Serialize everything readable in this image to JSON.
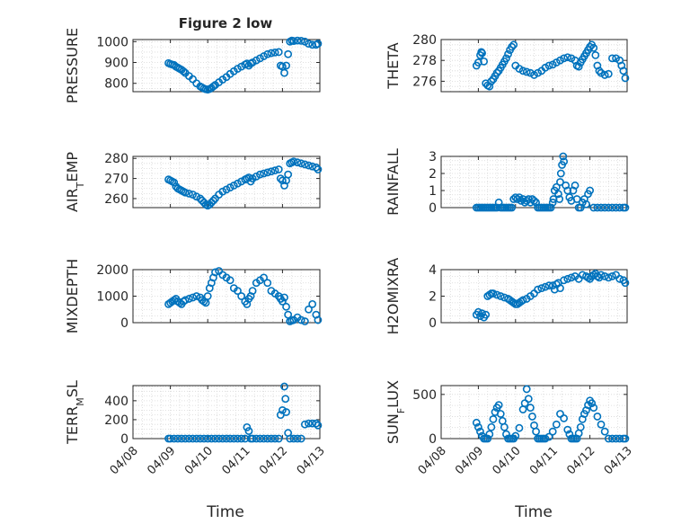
{
  "figure": {
    "title": "Figure 2 low",
    "xlabel": "Time",
    "x_ticks": [
      "04/08",
      "04/09",
      "04/10",
      "04/11",
      "04/12",
      "04/13"
    ],
    "x_ticks_value": [
      0,
      1,
      2,
      3,
      4,
      5
    ],
    "marker_color": "#0072BD",
    "grid_color": "#d8d8d8",
    "axis_color": "#262626"
  },
  "chart_data": [
    {
      "type": "scatter",
      "ylabel": "PRESSURE",
      "ylim": [
        760,
        1010
      ],
      "yticks": [
        800,
        900,
        1000
      ],
      "grid": true,
      "series": [
        {
          "x": [
            0.95,
            1.0,
            1.05,
            1.1,
            1.15,
            1.2,
            1.25,
            1.3,
            1.35,
            1.4,
            1.5,
            1.6,
            1.7,
            1.8,
            1.85,
            1.9,
            1.95,
            2.0,
            2.05,
            2.1,
            2.15,
            2.2,
            2.3,
            2.4,
            2.5,
            2.6,
            2.7,
            2.8,
            2.9,
            3.0,
            3.05,
            3.1,
            3.15,
            3.2,
            3.3,
            3.4,
            3.5,
            3.6,
            3.7,
            3.8,
            3.9,
            3.95,
            4.0,
            4.05,
            4.1,
            4.15,
            4.2,
            4.25,
            4.3,
            4.4,
            4.5,
            4.6,
            4.7,
            4.8,
            4.9,
            4.95
          ],
          "values": [
            897,
            893,
            890,
            888,
            880,
            875,
            870,
            865,
            858,
            850,
            835,
            820,
            800,
            785,
            780,
            775,
            772,
            770,
            773,
            778,
            785,
            792,
            805,
            818,
            830,
            845,
            858,
            870,
            880,
            890,
            895,
            885,
            895,
            900,
            910,
            920,
            930,
            940,
            945,
            948,
            950,
            885,
            880,
            850,
            885,
            940,
            1000,
            1005,
            1003,
            1005,
            1004,
            1000,
            990,
            985,
            985,
            990
          ]
        }
      ]
    },
    {
      "type": "scatter",
      "ylabel": "THETA",
      "ylim": [
        275.0,
        280.0
      ],
      "yticks": [
        276,
        278,
        280
      ],
      "grid": true,
      "series": [
        {
          "x": [
            0.95,
            1.0,
            1.05,
            1.08,
            1.1,
            1.15,
            1.2,
            1.25,
            1.3,
            1.35,
            1.4,
            1.45,
            1.5,
            1.55,
            1.6,
            1.65,
            1.7,
            1.75,
            1.8,
            1.85,
            1.9,
            1.95,
            2.0,
            2.1,
            2.2,
            2.3,
            2.4,
            2.5,
            2.6,
            2.7,
            2.8,
            2.9,
            3.0,
            3.1,
            3.2,
            3.3,
            3.4,
            3.5,
            3.6,
            3.65,
            3.7,
            3.75,
            3.8,
            3.85,
            3.9,
            3.95,
            4.0,
            4.05,
            4.1,
            4.15,
            4.2,
            4.25,
            4.3,
            4.4,
            4.5,
            4.6,
            4.7,
            4.8,
            4.85,
            4.9,
            4.95
          ],
          "values": [
            277.5,
            277.8,
            278.5,
            278.8,
            278.7,
            277.9,
            275.8,
            275.6,
            275.5,
            276.0,
            276.2,
            276.5,
            276.8,
            277.0,
            277.3,
            277.6,
            277.9,
            278.2,
            278.6,
            279.0,
            279.3,
            279.5,
            277.5,
            277.2,
            277.0,
            276.9,
            276.8,
            276.6,
            276.8,
            277.0,
            277.3,
            277.5,
            277.6,
            277.8,
            278.0,
            278.2,
            278.3,
            278.2,
            278.0,
            277.5,
            277.4,
            277.8,
            278.1,
            278.4,
            278.7,
            279.0,
            279.3,
            279.5,
            279.2,
            278.5,
            277.5,
            277.0,
            276.8,
            276.6,
            276.7,
            278.2,
            278.2,
            278.0,
            277.5,
            277.0,
            276.3
          ]
        }
      ]
    },
    {
      "type": "scatter",
      "ylabel": "AIR_TEMP",
      "ylim": [
        255.5,
        281.0
      ],
      "yticks": [
        260,
        270,
        280
      ],
      "grid": true,
      "series": [
        {
          "x": [
            0.95,
            1.0,
            1.05,
            1.1,
            1.15,
            1.2,
            1.25,
            1.3,
            1.35,
            1.4,
            1.5,
            1.6,
            1.7,
            1.8,
            1.85,
            1.9,
            1.95,
            2.0,
            2.05,
            2.1,
            2.15,
            2.2,
            2.3,
            2.4,
            2.5,
            2.6,
            2.7,
            2.8,
            2.9,
            3.0,
            3.05,
            3.1,
            3.15,
            3.2,
            3.3,
            3.4,
            3.5,
            3.6,
            3.7,
            3.8,
            3.9,
            3.95,
            4.0,
            4.05,
            4.1,
            4.15,
            4.2,
            4.25,
            4.3,
            4.4,
            4.5,
            4.6,
            4.7,
            4.8,
            4.9,
            4.95
          ],
          "values": [
            269.5,
            269.0,
            268.5,
            268.0,
            266.0,
            265.0,
            264.5,
            264.0,
            263.5,
            263.0,
            262.5,
            262.0,
            261.0,
            260.0,
            259.0,
            258.0,
            257.0,
            256.5,
            257.0,
            258.0,
            259.0,
            260.0,
            262.0,
            263.5,
            264.5,
            265.5,
            266.5,
            267.5,
            268.5,
            269.5,
            270.0,
            270.5,
            268.5,
            270.0,
            271.0,
            272.0,
            272.5,
            273.0,
            273.5,
            274.0,
            274.5,
            270.0,
            269.0,
            266.5,
            269.0,
            272.0,
            277.5,
            278.0,
            278.5,
            278.0,
            277.5,
            277.0,
            276.5,
            276.0,
            275.5,
            274.5
          ]
        }
      ]
    },
    {
      "type": "scatter",
      "ylabel": "RAINFALL",
      "ylim": [
        0,
        3
      ],
      "yticks": [
        0,
        1,
        2,
        3
      ],
      "grid": true,
      "series": [
        {
          "x": [
            0.95,
            1.0,
            1.05,
            1.1,
            1.15,
            1.2,
            1.25,
            1.3,
            1.35,
            1.4,
            1.45,
            1.5,
            1.55,
            1.6,
            1.65,
            1.7,
            1.75,
            1.8,
            1.85,
            1.9,
            1.95,
            2.0,
            2.05,
            2.1,
            2.15,
            2.2,
            2.25,
            2.3,
            2.35,
            2.4,
            2.45,
            2.5,
            2.55,
            2.6,
            2.65,
            2.7,
            2.75,
            2.8,
            2.85,
            2.9,
            2.95,
            3.0,
            3.02,
            3.05,
            3.1,
            3.15,
            3.18,
            3.2,
            3.22,
            3.25,
            3.28,
            3.3,
            3.35,
            3.4,
            3.45,
            3.5,
            3.55,
            3.6,
            3.65,
            3.7,
            3.75,
            3.8,
            3.85,
            3.9,
            3.95,
            4.0,
            4.1,
            4.2,
            4.3,
            4.4,
            4.5,
            4.6,
            4.7,
            4.8,
            4.9,
            4.95
          ],
          "values": [
            0,
            0,
            0,
            0,
            0,
            0,
            0,
            0,
            0,
            0,
            0,
            0,
            0.3,
            0,
            0,
            0,
            0,
            0,
            0,
            0,
            0.5,
            0.6,
            0.5,
            0.6,
            0.4,
            0.5,
            0.3,
            0.4,
            0.5,
            0.3,
            0.5,
            0.4,
            0.3,
            0,
            0,
            0,
            0,
            0,
            0,
            0,
            0,
            0.3,
            0.5,
            1.0,
            1.2,
            0.8,
            0.5,
            1.5,
            2.0,
            2.5,
            3.0,
            2.7,
            1.3,
            1.0,
            0.6,
            0.4,
            1.0,
            1.3,
            0.5,
            0,
            0,
            0.3,
            0.5,
            0.2,
            0.8,
            1.0,
            0,
            0,
            0,
            0,
            0,
            0,
            0,
            0,
            0,
            0
          ]
        }
      ]
    },
    {
      "type": "scatter",
      "ylabel": "MIXDEPTH",
      "ylim": [
        0,
        2000
      ],
      "yticks": [
        0,
        1000,
        2000
      ],
      "grid": true,
      "series": [
        {
          "x": [
            0.95,
            1.0,
            1.05,
            1.1,
            1.15,
            1.2,
            1.25,
            1.3,
            1.35,
            1.4,
            1.5,
            1.6,
            1.7,
            1.8,
            1.85,
            1.9,
            1.95,
            2.0,
            2.05,
            2.1,
            2.15,
            2.2,
            2.3,
            2.4,
            2.5,
            2.6,
            2.7,
            2.8,
            2.9,
            3.0,
            3.05,
            3.1,
            3.15,
            3.2,
            3.3,
            3.4,
            3.5,
            3.6,
            3.7,
            3.8,
            3.9,
            3.95,
            4.0,
            4.05,
            4.1,
            4.15,
            4.2,
            4.25,
            4.3,
            4.4,
            4.5,
            4.6,
            4.7,
            4.8,
            4.9,
            4.95
          ],
          "values": [
            700,
            750,
            800,
            850,
            900,
            800,
            750,
            700,
            800,
            850,
            900,
            950,
            1000,
            950,
            850,
            800,
            750,
            1000,
            1300,
            1500,
            1700,
            1900,
            1950,
            1800,
            1700,
            1600,
            1300,
            1200,
            1000,
            800,
            700,
            900,
            1000,
            1200,
            1500,
            1600,
            1700,
            1500,
            1200,
            1100,
            1000,
            900,
            800,
            950,
            600,
            300,
            50,
            80,
            100,
            200,
            100,
            50,
            500,
            700,
            300,
            100
          ]
        }
      ]
    },
    {
      "type": "scatter",
      "ylabel": "H2OMIXRA",
      "ylim": [
        0,
        4
      ],
      "yticks": [
        0,
        2,
        4
      ],
      "grid": true,
      "series": [
        {
          "x": [
            0.95,
            1.0,
            1.05,
            1.1,
            1.15,
            1.2,
            1.25,
            1.3,
            1.35,
            1.4,
            1.5,
            1.6,
            1.7,
            1.8,
            1.85,
            1.9,
            1.95,
            2.0,
            2.05,
            2.1,
            2.15,
            2.2,
            2.3,
            2.4,
            2.5,
            2.6,
            2.7,
            2.8,
            2.9,
            3.0,
            3.05,
            3.1,
            3.15,
            3.2,
            3.3,
            3.4,
            3.5,
            3.6,
            3.7,
            3.8,
            3.9,
            3.95,
            4.0,
            4.05,
            4.1,
            4.15,
            4.2,
            4.25,
            4.3,
            4.4,
            4.5,
            4.6,
            4.7,
            4.8,
            4.9,
            4.95
          ],
          "values": [
            0.6,
            0.8,
            0.5,
            0.7,
            0.4,
            0.6,
            2.0,
            2.1,
            2.2,
            2.2,
            2.1,
            2.0,
            1.9,
            1.8,
            1.7,
            1.6,
            1.5,
            1.4,
            1.4,
            1.5,
            1.6,
            1.7,
            1.8,
            2.0,
            2.2,
            2.5,
            2.6,
            2.7,
            2.8,
            2.8,
            2.5,
            2.9,
            3.0,
            2.6,
            3.2,
            3.3,
            3.4,
            3.5,
            3.3,
            3.6,
            3.5,
            3.4,
            3.3,
            3.5,
            3.6,
            3.7,
            3.5,
            3.4,
            3.6,
            3.5,
            3.4,
            3.5,
            3.6,
            3.3,
            3.2,
            3.0
          ]
        }
      ]
    },
    {
      "type": "scatter",
      "ylabel": "TERR_MSL",
      "ylim": [
        0,
        560
      ],
      "yticks": [
        0,
        200,
        400
      ],
      "grid": true,
      "series": [
        {
          "x": [
            0.95,
            1.0,
            1.1,
            1.2,
            1.3,
            1.4,
            1.5,
            1.6,
            1.7,
            1.8,
            1.9,
            2.0,
            2.1,
            2.2,
            2.3,
            2.4,
            2.5,
            2.6,
            2.7,
            2.8,
            2.9,
            3.0,
            3.05,
            3.1,
            3.15,
            3.2,
            3.3,
            3.4,
            3.5,
            3.6,
            3.7,
            3.8,
            3.9,
            3.95,
            4.0,
            4.05,
            4.08,
            4.1,
            4.15,
            4.2,
            4.3,
            4.4,
            4.5,
            4.6,
            4.7,
            4.8,
            4.9,
            4.95
          ],
          "values": [
            0,
            0,
            0,
            0,
            0,
            0,
            0,
            0,
            0,
            0,
            0,
            0,
            0,
            0,
            0,
            0,
            0,
            0,
            0,
            0,
            0,
            0,
            120,
            80,
            0,
            0,
            0,
            0,
            0,
            0,
            0,
            0,
            0,
            250,
            300,
            550,
            420,
            280,
            60,
            0,
            0,
            0,
            0,
            150,
            160,
            160,
            160,
            140
          ]
        }
      ]
    },
    {
      "type": "scatter",
      "ylabel": "SUN_FLUX",
      "ylim": [
        0,
        600
      ],
      "yticks": [
        0,
        500
      ],
      "grid": true,
      "series": [
        {
          "x": [
            0.95,
            1.0,
            1.05,
            1.1,
            1.15,
            1.2,
            1.25,
            1.3,
            1.35,
            1.4,
            1.45,
            1.5,
            1.55,
            1.6,
            1.65,
            1.7,
            1.75,
            1.8,
            1.85,
            1.9,
            1.95,
            2.0,
            2.1,
            2.2,
            2.25,
            2.3,
            2.35,
            2.4,
            2.45,
            2.5,
            2.55,
            2.6,
            2.65,
            2.7,
            2.75,
            2.8,
            2.9,
            3.0,
            3.1,
            3.2,
            3.3,
            3.4,
            3.45,
            3.5,
            3.55,
            3.6,
            3.65,
            3.7,
            3.75,
            3.8,
            3.85,
            3.9,
            3.95,
            4.0,
            4.05,
            4.1,
            4.2,
            4.3,
            4.4,
            4.5,
            4.6,
            4.7,
            4.8,
            4.9,
            4.95
          ],
          "values": [
            180,
            130,
            80,
            30,
            0,
            0,
            0,
            50,
            130,
            220,
            300,
            350,
            380,
            280,
            200,
            130,
            50,
            0,
            0,
            0,
            0,
            30,
            120,
            330,
            400,
            560,
            450,
            350,
            250,
            150,
            80,
            0,
            0,
            0,
            0,
            0,
            20,
            80,
            160,
            280,
            230,
            100,
            50,
            0,
            0,
            0,
            0,
            60,
            130,
            220,
            280,
            320,
            380,
            430,
            400,
            350,
            250,
            160,
            80,
            0,
            0,
            0,
            0,
            0,
            0
          ]
        }
      ]
    }
  ]
}
